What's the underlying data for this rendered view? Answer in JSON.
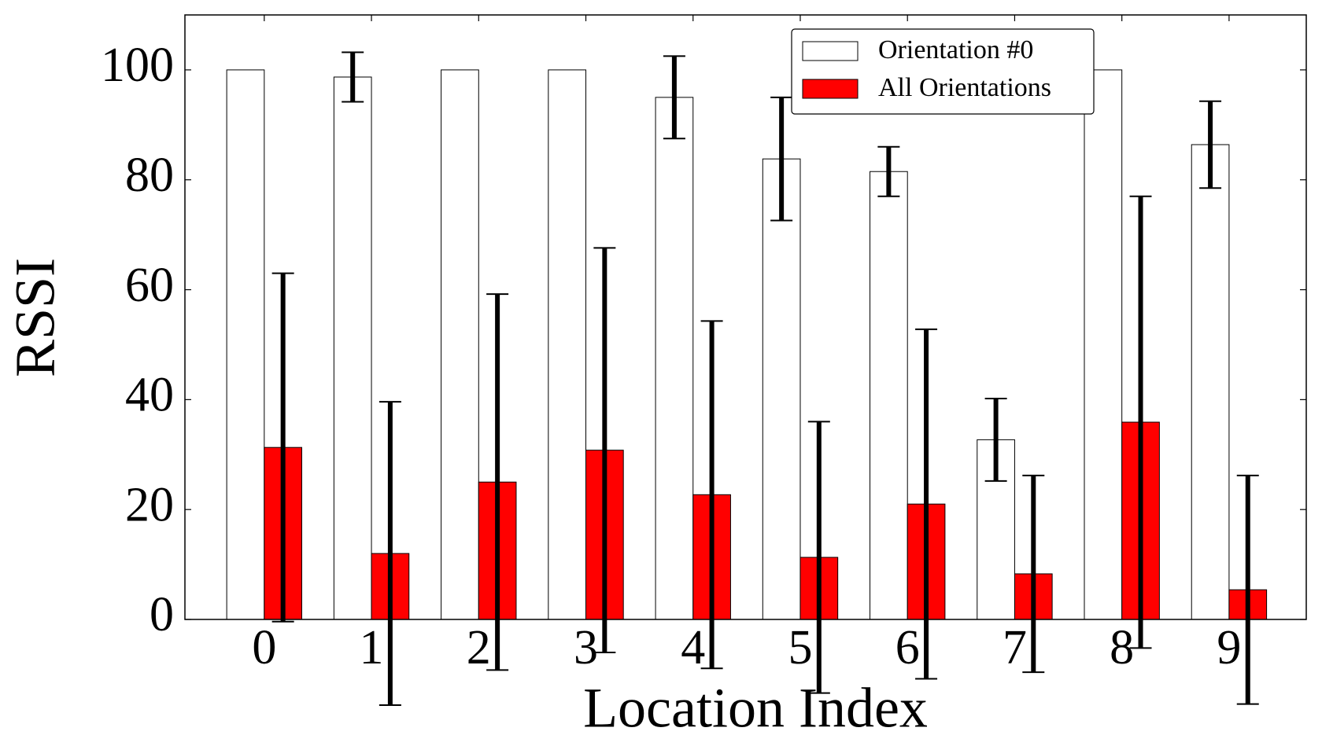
{
  "chart_data": {
    "type": "bar",
    "x_label": "Location Index",
    "y_label": "RSSI",
    "categories": [
      "0",
      "1",
      "2",
      "3",
      "4",
      "5",
      "6",
      "7",
      "8",
      "9"
    ],
    "series": [
      {
        "name": "Orientation #0",
        "color": "#ffffff",
        "values": [
          100,
          98.7,
          100,
          100,
          95,
          83.8,
          81.5,
          32.7,
          100,
          86.4
        ],
        "errors": [
          0,
          4.5,
          0,
          0,
          7.5,
          11.2,
          4.5,
          7.5,
          0,
          7.9
        ]
      },
      {
        "name": "All Orientations",
        "color": "#ff0000",
        "values": [
          31.3,
          12.0,
          25.0,
          30.8,
          22.7,
          11.3,
          21.0,
          8.3,
          35.9,
          5.4
        ],
        "errors": [
          31.7,
          27.6,
          34.2,
          36.8,
          31.6,
          24.7,
          31.8,
          17.9,
          41.1,
          20.8
        ]
      }
    ],
    "ylim": [
      0,
      110
    ],
    "yticks": [
      0,
      20,
      40,
      60,
      80,
      100
    ],
    "legend": "upper right"
  }
}
